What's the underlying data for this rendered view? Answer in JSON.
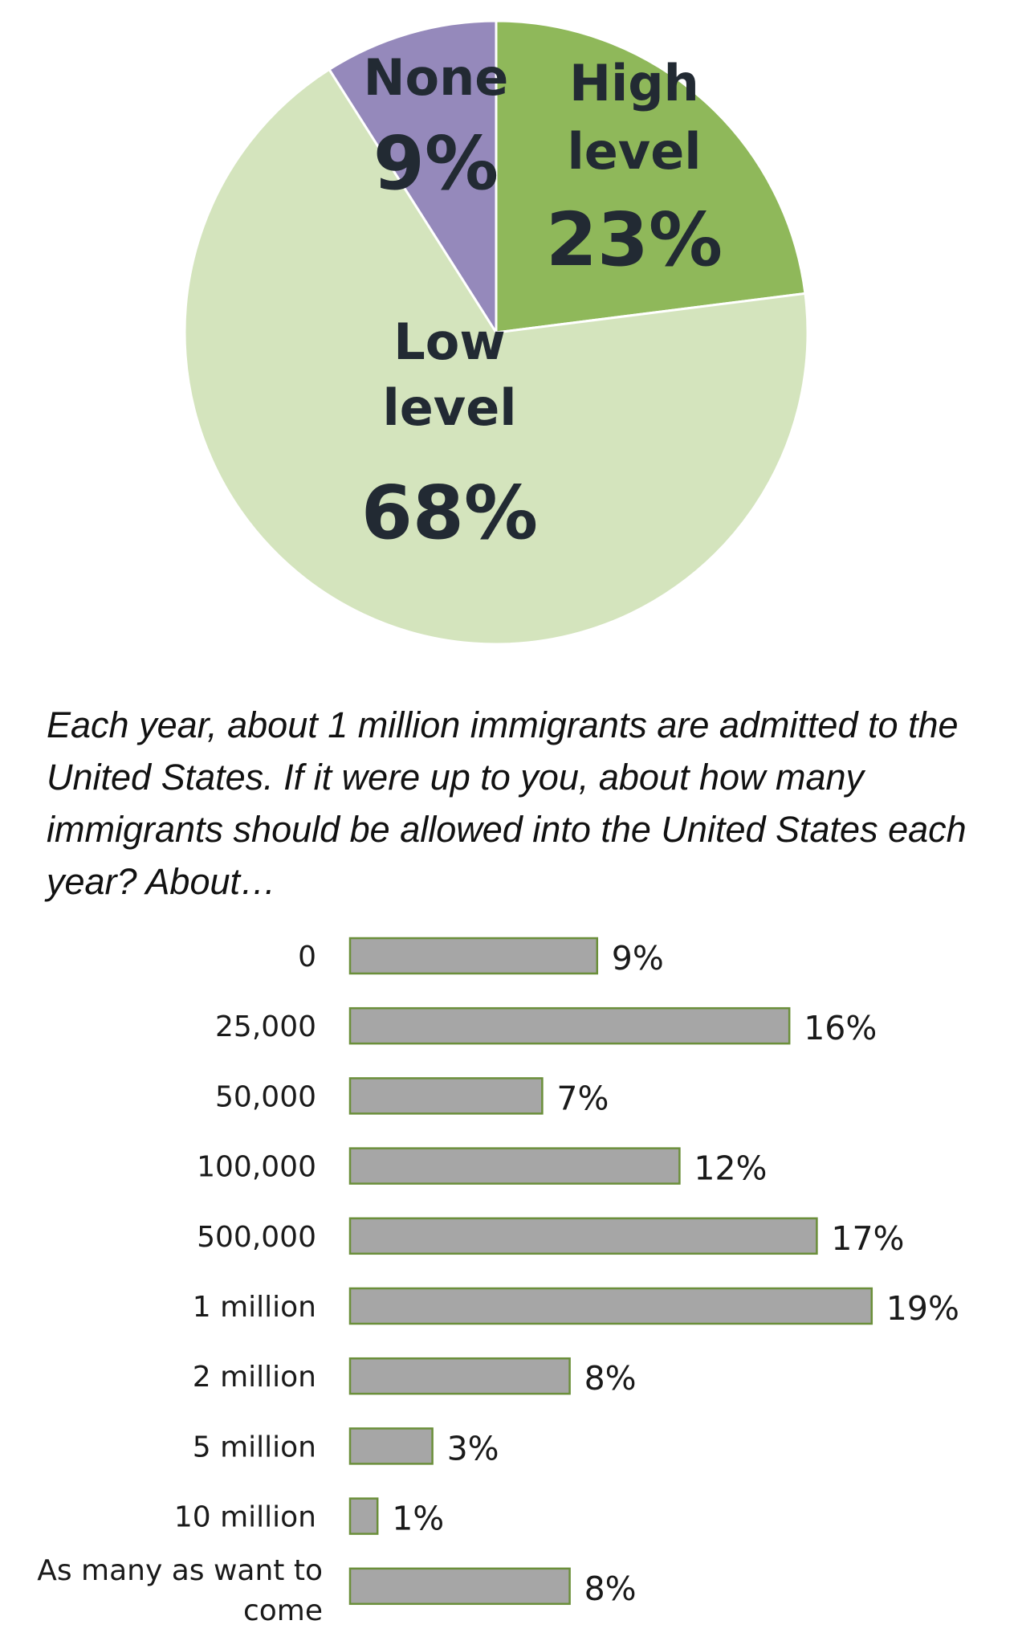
{
  "chart_data": [
    {
      "type": "pie",
      "slices": [
        {
          "label": "High level",
          "label_lines": [
            "High",
            "level"
          ],
          "value": 23,
          "value_label": "23%",
          "color": "#8fb85a"
        },
        {
          "label": "Low level",
          "label_lines": [
            "Low",
            "level"
          ],
          "value": 68,
          "value_label": "68%",
          "color": "#d4e4bd"
        },
        {
          "label": "None",
          "label_lines": [
            "None"
          ],
          "value": 9,
          "value_label": "9%",
          "color": "#9589bb"
        }
      ]
    },
    {
      "type": "bar",
      "orientation": "horizontal",
      "title": "Each year, about 1 million immigrants are admitted to the United States. If it were up to you, about how many immigrants should be allowed into the United States each year? About…",
      "categories": [
        "0",
        "25,000",
        "50,000",
        "100,000",
        "500,000",
        "1 million",
        "2 million",
        "5 million",
        "10 million",
        "As many as want to come"
      ],
      "category_lines": [
        [
          "0"
        ],
        [
          "25,000"
        ],
        [
          "50,000"
        ],
        [
          "100,000"
        ],
        [
          "500,000"
        ],
        [
          "1 million"
        ],
        [
          "2 million"
        ],
        [
          "5 million"
        ],
        [
          "10 million"
        ],
        [
          "As many as want to",
          "come"
        ]
      ],
      "values": [
        9,
        16,
        7,
        12,
        17,
        19,
        8,
        3,
        1,
        8
      ],
      "value_labels": [
        "9%",
        "16%",
        "7%",
        "12%",
        "17%",
        "19%",
        "8%",
        "3%",
        "1%",
        "8%"
      ],
      "bar_color": "#a6a6a6",
      "bar_border_color": "#6b8f3a"
    }
  ]
}
